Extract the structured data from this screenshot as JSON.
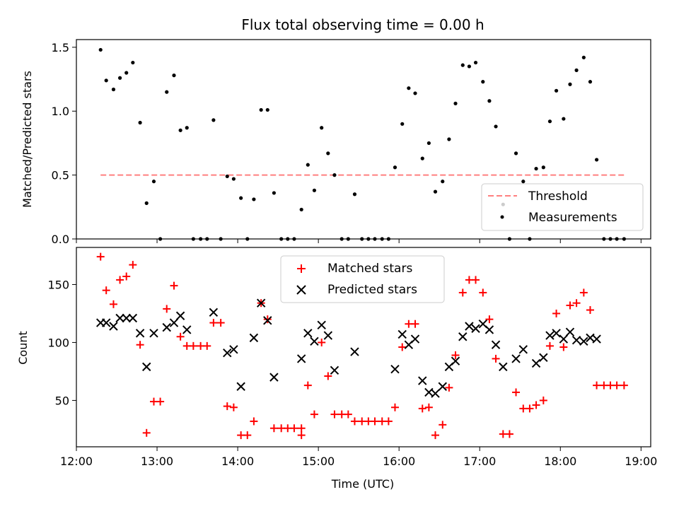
{
  "chart_data": [
    {
      "type": "scatter",
      "title": "Flux total observing time = 0.00 h",
      "xlabel": "",
      "ylabel": "Matched/Predicted stars",
      "xlim": [
        12.0,
        19.12
      ],
      "ylim": [
        0,
        1.56
      ],
      "yticks": [
        0.0,
        0.5,
        1.0,
        1.5
      ],
      "ytick_labels": [
        "0.0",
        "0.5",
        "1.0",
        "1.5"
      ],
      "legend_position": "lower-right",
      "series": [
        {
          "name": "Threshold",
          "kind": "dashed-line",
          "color": "#ff7f7f",
          "x": [
            12.3,
            18.8
          ],
          "y": [
            0.5,
            0.5
          ]
        },
        {
          "name": "Measurements",
          "kind": "points",
          "color": "#000000",
          "x": [
            12.3,
            12.37,
            12.46,
            12.54,
            12.62,
            12.7,
            12.79,
            12.87,
            12.96,
            13.04,
            13.12,
            13.21,
            13.29,
            13.37,
            13.45,
            13.54,
            13.62,
            13.7,
            13.79,
            13.87,
            13.95,
            14.04,
            14.12,
            14.2,
            14.29,
            14.37,
            14.45,
            14.54,
            14.62,
            14.7,
            14.79,
            14.87,
            14.95,
            15.04,
            15.12,
            15.2,
            15.29,
            15.37,
            15.45,
            15.54,
            15.62,
            15.7,
            15.79,
            15.87,
            15.95,
            16.04,
            16.12,
            16.2,
            16.29,
            16.37,
            16.45,
            16.54,
            16.62,
            16.7,
            16.79,
            16.87,
            16.95,
            17.04,
            17.12,
            17.2,
            17.29,
            17.37,
            17.45,
            17.54,
            17.62,
            17.7,
            17.79,
            17.87,
            17.95,
            18.04,
            18.12,
            18.2,
            18.29,
            18.37,
            18.45,
            18.54,
            18.62,
            18.7,
            18.79
          ],
          "y": [
            1.48,
            1.24,
            1.17,
            1.26,
            1.3,
            1.38,
            0.91,
            0.28,
            0.45,
            0.0,
            1.15,
            1.28,
            0.85,
            0.87,
            0.0,
            0.0,
            0.0,
            0.93,
            0.0,
            0.49,
            0.47,
            0.32,
            0.0,
            0.31,
            1.01,
            1.01,
            0.36,
            0.0,
            0.0,
            0.0,
            0.23,
            0.58,
            0.38,
            0.87,
            0.67,
            0.5,
            0.0,
            0.0,
            0.35,
            0.0,
            0.0,
            0.0,
            0.0,
            0.0,
            0.56,
            0.9,
            1.18,
            1.14,
            0.63,
            0.75,
            0.37,
            0.45,
            0.78,
            1.06,
            1.36,
            1.35,
            1.38,
            1.23,
            1.08,
            0.88,
            0.27,
            0.0,
            0.67,
            0.45,
            0.0,
            0.55,
            0.56,
            0.92,
            1.16,
            0.94,
            1.21,
            1.32,
            1.42,
            1.23,
            0.62,
            0.0,
            0.0,
            0.0,
            0.0
          ]
        }
      ]
    },
    {
      "type": "scatter",
      "title": "",
      "xlabel": "Time (UTC)",
      "ylabel": "Count",
      "xlim": [
        12.0,
        19.12
      ],
      "ylim": [
        10,
        182
      ],
      "yticks": [
        50,
        100,
        150
      ],
      "ytick_labels": [
        "50",
        "100",
        "150"
      ],
      "xticks": [
        12,
        13,
        14,
        15,
        16,
        17,
        18,
        19
      ],
      "xtick_labels": [
        "12:00",
        "13:00",
        "14:00",
        "15:00",
        "16:00",
        "17:00",
        "18:00",
        "19:00"
      ],
      "legend_position": "upper-center",
      "series": [
        {
          "name": "Matched stars",
          "marker": "plus",
          "color": "#ff0000",
          "x": [
            12.3,
            12.37,
            12.46,
            12.54,
            12.62,
            12.7,
            12.79,
            12.87,
            12.96,
            13.04,
            13.12,
            13.21,
            13.29,
            13.37,
            13.45,
            13.54,
            13.62,
            13.7,
            13.79,
            13.87,
            13.95,
            14.04,
            14.12,
            14.2,
            14.29,
            14.37,
            14.45,
            14.54,
            14.62,
            14.7,
            14.79,
            14.87,
            14.95,
            15.04,
            15.12,
            15.2,
            15.29,
            15.37,
            15.45,
            15.54,
            15.62,
            15.7,
            15.79,
            15.87,
            15.95,
            16.04,
            16.12,
            16.2,
            16.29,
            16.37,
            16.45,
            16.54,
            16.62,
            16.7,
            16.79,
            16.87,
            16.95,
            17.04,
            17.12,
            17.2,
            17.29,
            17.37,
            17.45,
            17.54,
            17.62,
            17.7,
            17.79,
            17.87,
            17.95,
            18.04,
            18.12,
            18.2,
            18.29,
            18.37,
            18.45,
            18.54,
            18.62,
            18.7,
            18.79,
            14.79
          ],
          "y": [
            174,
            145,
            133,
            154,
            157,
            167,
            98,
            22,
            49,
            49,
            129,
            149,
            105,
            97,
            97,
            97,
            97,
            117,
            117,
            45,
            44,
            20,
            20,
            32,
            134,
            120,
            26,
            26,
            26,
            26,
            26,
            63,
            38,
            100,
            71,
            38,
            38,
            38,
            32,
            32,
            32,
            32,
            32,
            32,
            44,
            96,
            116,
            116,
            43,
            44,
            20,
            29,
            61,
            89,
            143,
            154,
            154,
            143,
            120,
            86,
            21,
            21,
            57,
            43,
            43,
            46,
            50,
            97,
            125,
            96,
            132,
            134,
            143,
            128,
            63,
            63,
            63,
            63,
            63,
            20
          ]
        },
        {
          "name": "Predicted stars",
          "marker": "x",
          "color": "#000000",
          "x": [
            12.3,
            12.37,
            12.46,
            12.54,
            12.62,
            12.7,
            12.79,
            12.87,
            12.96,
            13.12,
            13.21,
            13.29,
            13.37,
            13.7,
            13.87,
            13.95,
            14.04,
            14.2,
            14.29,
            14.37,
            14.45,
            14.79,
            14.87,
            14.95,
            15.04,
            15.12,
            15.2,
            15.45,
            15.95,
            16.04,
            16.12,
            16.2,
            16.29,
            16.37,
            16.45,
            16.54,
            16.62,
            16.7,
            16.79,
            16.87,
            16.95,
            17.04,
            17.12,
            17.2,
            17.29,
            17.45,
            17.54,
            17.7,
            17.79,
            17.87,
            17.95,
            18.04,
            18.12,
            18.2,
            18.29,
            18.37,
            18.45
          ],
          "y": [
            117,
            117,
            114,
            121,
            121,
            121,
            108,
            79,
            108,
            113,
            117,
            123,
            111,
            126,
            91,
            94,
            62,
            104,
            134,
            119,
            70,
            86,
            108,
            101,
            115,
            106,
            76,
            92,
            77,
            107,
            98,
            103,
            67,
            57,
            56,
            62,
            79,
            84,
            105,
            114,
            112,
            116,
            111,
            98,
            79,
            86,
            94,
            82,
            87,
            106,
            108,
            103,
            109,
            102,
            101,
            104,
            103
          ]
        }
      ]
    }
  ]
}
